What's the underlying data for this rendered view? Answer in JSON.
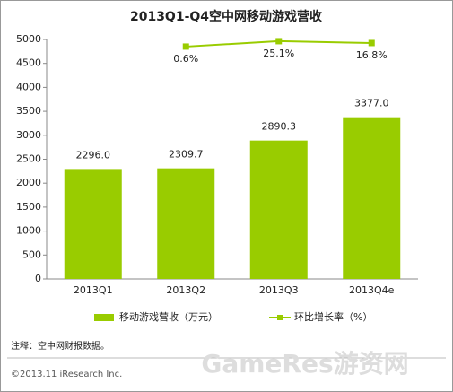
{
  "chart_data": {
    "type": "bar",
    "title": "2013Q1-Q4空中网移动游戏营收",
    "categories": [
      "2013Q1",
      "2013Q2",
      "2013Q3",
      "2013Q4e"
    ],
    "series": [
      {
        "name": "移动游戏营收（万元）",
        "type": "bar",
        "color": "#99cc00",
        "values": [
          2296.0,
          2309.7,
          2890.3,
          3377.0
        ],
        "value_labels": [
          "2296.0",
          "2309.7",
          "2890.3",
          "3377.0"
        ]
      },
      {
        "name": "环比增长率（%）",
        "type": "line",
        "axis": "y2",
        "color": "#99cc00",
        "values": [
          null,
          0.6,
          25.1,
          16.8
        ],
        "value_labels": [
          null,
          "0.6%",
          "25.1%",
          "16.8%"
        ]
      }
    ],
    "ylim": [
      0,
      5000
    ],
    "yticks": [
      0,
      500,
      1000,
      1500,
      2000,
      2500,
      3000,
      3500,
      4000,
      4500,
      5000
    ],
    "y2lim": [
      -1057,
      33
    ],
    "legend": "bottom",
    "note": "注释：空中网财报数据。",
    "source": "©2013.11 iResearch Inc.",
    "watermark": "GameRes游资网"
  }
}
